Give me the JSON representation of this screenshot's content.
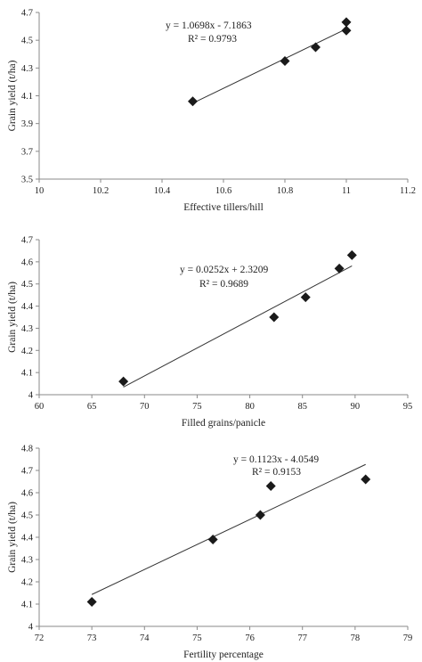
{
  "chart_data": [
    {
      "type": "scatter",
      "xlabel": "Effective tillers/hill",
      "ylabel": "Grain yield (t/ha)",
      "xlim": [
        10,
        11.2
      ],
      "ylim": [
        3.5,
        4.7
      ],
      "xticks": [
        10,
        10.2,
        10.4,
        10.6,
        10.8,
        11,
        11.2
      ],
      "yticks": [
        3.5,
        3.7,
        3.9,
        4.1,
        4.3,
        4.5,
        4.7
      ],
      "xtick_labels": [
        "10",
        "10.2",
        "10.4",
        "10.6",
        "10.8",
        "11",
        "11.2"
      ],
      "ytick_labels": [
        "3.5",
        "3.7",
        "3.9",
        "4.1",
        "4.3",
        "4.5",
        "4.7"
      ],
      "x": [
        10.5,
        10.8,
        10.9,
        11.0,
        11.0
      ],
      "y": [
        4.06,
        4.35,
        4.45,
        4.57,
        4.63
      ],
      "trendline": {
        "slope": 1.0698,
        "intercept": -7.1863,
        "x_range": [
          10.5,
          11.0
        ]
      },
      "equation": "y = 1.0698x - 7.1863",
      "r2": "R² = 0.9793",
      "grid": false,
      "marker": "diamond"
    },
    {
      "type": "scatter",
      "xlabel": "Filled grains/panicle",
      "ylabel": "Grain yield (t/ha)",
      "xlim": [
        60,
        95
      ],
      "ylim": [
        4,
        4.7
      ],
      "xticks": [
        60,
        65,
        70,
        75,
        80,
        85,
        90,
        95
      ],
      "yticks": [
        4,
        4.1,
        4.2,
        4.3,
        4.4,
        4.5,
        4.6,
        4.7
      ],
      "xtick_labels": [
        "60",
        "65",
        "70",
        "75",
        "80",
        "85",
        "90",
        "95"
      ],
      "ytick_labels": [
        "4",
        "4.1",
        "4.2",
        "4.3",
        "4.4",
        "4.5",
        "4.6",
        "4.7"
      ],
      "x": [
        68.0,
        82.3,
        85.3,
        88.5,
        89.7
      ],
      "y": [
        4.06,
        4.35,
        4.44,
        4.57,
        4.63
      ],
      "trendline": {
        "slope": 0.0252,
        "intercept": 2.3209,
        "x_range": [
          68.0,
          89.7
        ]
      },
      "equation": "y = 0.0252x + 2.3209",
      "r2": "R² = 0.9689",
      "grid": false,
      "marker": "diamond"
    },
    {
      "type": "scatter",
      "xlabel": "Fertility percentage",
      "ylabel": "Grain yield (t/ha)",
      "xlim": [
        72,
        79
      ],
      "ylim": [
        4,
        4.8
      ],
      "xticks": [
        72,
        73,
        74,
        75,
        76,
        77,
        78,
        79
      ],
      "yticks": [
        4,
        4.1,
        4.2,
        4.3,
        4.4,
        4.5,
        4.6,
        4.7,
        4.8
      ],
      "xtick_labels": [
        "72",
        "73",
        "74",
        "75",
        "76",
        "77",
        "78",
        "79"
      ],
      "ytick_labels": [
        "4",
        "4.1",
        "4.2",
        "4.3",
        "4.4",
        "4.5",
        "4.6",
        "4.7",
        "4.8"
      ],
      "x": [
        73.0,
        75.3,
        76.2,
        76.4,
        78.2
      ],
      "y": [
        4.11,
        4.39,
        4.5,
        4.63,
        4.66
      ],
      "trendline": {
        "slope": 0.1123,
        "intercept": -4.0549,
        "x_range": [
          73.0,
          78.2
        ]
      },
      "equation": "y = 0.1123x - 4.0549",
      "r2": "R² = 0.9153",
      "grid": false,
      "marker": "diamond"
    }
  ],
  "style": {
    "axis_color": "#8a8a8a",
    "marker_color": "#1a1a1a",
    "trend_color": "#333333",
    "text_color": "#222222"
  }
}
